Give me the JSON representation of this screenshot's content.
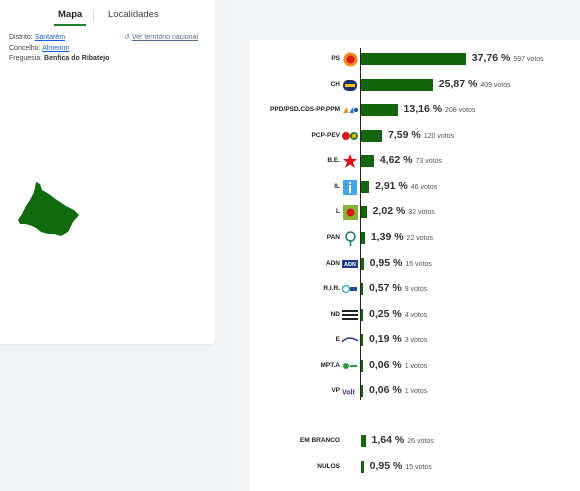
{
  "tabs": {
    "map": "Mapa",
    "localities": "Localidades"
  },
  "info": {
    "distrito_label": "Distrito:",
    "distrito_value": "Santarém",
    "concelho_label": "Concelho:",
    "concelho_value": "Almeirim",
    "freguesia_label": "Freguesia:",
    "freguesia_value": "Benfica do Ribatejo",
    "ver_territorio": "Ver território nacional"
  },
  "colors": {
    "bar": "#15650f",
    "map_fill": "#0f6b0b",
    "link": "#1a5fd6",
    "tab_underline": "#1b7f2a"
  },
  "chart_data": {
    "type": "bar",
    "orientation": "horizontal",
    "categories": [
      "PS",
      "CH",
      "PPD/PSD.CDS-PP.PPM",
      "PCP-PEV",
      "B.E.",
      "IL",
      "L",
      "PAN",
      "ADN",
      "R.I.R.",
      "ND",
      "E",
      "MPT.A",
      "VP",
      "EM BRANCO",
      "NULOS"
    ],
    "values": [
      37.76,
      25.87,
      13.16,
      7.59,
      4.62,
      2.91,
      2.02,
      1.39,
      0.95,
      0.57,
      0.25,
      0.19,
      0.06,
      0.06,
      1.64,
      0.95
    ],
    "labels": [
      "37,76 %",
      "25,87 %",
      "13,16 %",
      "7,59 %",
      "4,62 %",
      "2,91 %",
      "2,02 %",
      "1,39 %",
      "0,95 %",
      "0,57 %",
      "0,25 %",
      "0,19 %",
      "0,06 %",
      "0,06 %",
      "1,64 %",
      "0,95 %"
    ],
    "votes": [
      "597 votos",
      "409 votos",
      "208 votos",
      "120 votos",
      "73 votos",
      "46 votos",
      "32 votos",
      "22 votos",
      "15 votos",
      "9 votos",
      "4 votos",
      "3 votos",
      "1 votos",
      "1 votos",
      "26 votos",
      "15 votos"
    ],
    "logos": [
      "ps-logo",
      "ch-logo",
      "ad-logo",
      "cdu-logo",
      "be-star-logo",
      "il-logo",
      "livre-logo",
      "pan-tree-logo",
      "adn-logo",
      "rir-logo",
      "nd-logo",
      "ergue-te-logo",
      "mpt-logo",
      "volt-logo",
      "",
      ""
    ],
    "xlim": [
      0,
      40
    ]
  }
}
